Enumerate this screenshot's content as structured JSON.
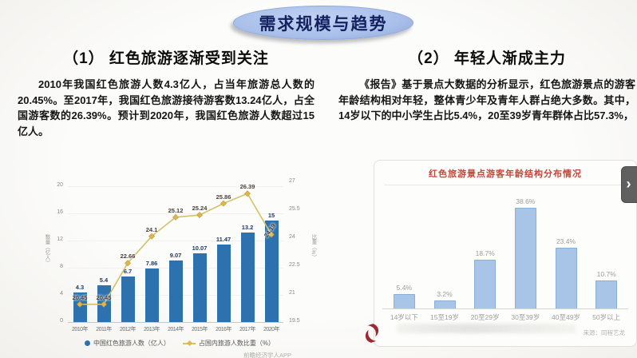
{
  "page_title": "需求规模与趋势",
  "left": {
    "heading": "（1）  红色旅游逐渐受到关注",
    "paragraph": "2010年我国红色旅游人数4.3亿人，占当年旅游总人数的20.45%。至2017年，我国红色旅游接待游客数13.24亿人，占全国游客数的26.39%。预计到2020年，我国红色旅游人数超过15亿人。"
  },
  "right": {
    "heading": "（2）  年轻人渐成主力",
    "paragraph": "《报告》基于景点大数据的分析显示，红色旅游景点的游客年龄结构相对年轻，整体青少年及青年人群占绝大多数。其中，14岁以下的中小学生占比5.4%，20至39岁青年群体占比57.3%，"
  },
  "chart_data": [
    {
      "type": "bar",
      "categories": [
        "2010年",
        "2011年",
        "2012年",
        "2013年",
        "2014年",
        "2015年",
        "2016年",
        "2017年",
        "2020年"
      ],
      "series": [
        {
          "name": "中国红色旅游人数（亿人）",
          "type": "bar",
          "axis": "left",
          "values": [
            4.3,
            5.4,
            6.7,
            7.86,
            9.07,
            10.07,
            11.47,
            13.2,
            15
          ]
        },
        {
          "name": "占国内旅游人数比重（%）",
          "type": "line",
          "axis": "right",
          "values": [
            20.45,
            20.45,
            22.66,
            24.1,
            25.12,
            25.24,
            25.86,
            26.39,
            24.19
          ]
        }
      ],
      "title": "",
      "ylabel_left": "数量（亿人）",
      "ylabel_right": "比重（%）",
      "y_left": {
        "min": 0,
        "max": 20,
        "ticks": [
          0,
          4,
          8,
          12,
          16,
          20
        ]
      },
      "y_right": {
        "min": 19.5,
        "max": 27,
        "ticks": [
          19.5,
          21,
          22.5,
          24,
          25.5,
          27
        ]
      },
      "grid": "off",
      "legend_position": "bottom",
      "caption": "前瞻经济学人APP"
    },
    {
      "type": "bar",
      "title": "红色旅游景点游客年龄结构分布情况",
      "categories": [
        "14岁以下",
        "15至19岁",
        "20至29岁",
        "30至39岁",
        "40至49岁",
        "50岁以上"
      ],
      "values": [
        5.4,
        3.2,
        18.7,
        38.6,
        23.4,
        10.7
      ],
      "unit": "%",
      "ylim": [
        0,
        40
      ],
      "grid": "off",
      "legend_position": "none",
      "source": "来源：同程艺龙"
    }
  ],
  "next_button": {
    "label": "›"
  },
  "colors": {
    "pill_bg": "#a9c0ea",
    "pill_text": "#13215e",
    "bar_primary": "#2d72ae",
    "bar_label": "#1f3864",
    "line": "#d2c266",
    "marker": "#e3b64b",
    "line_label": "#4a4038",
    "bar_secondary": "#a8c5e8",
    "bar_secondary_border": "#8bb0d8",
    "chart2_title": "#c2473b",
    "logo_red": "#9c2a33",
    "muted": "#9c9c98"
  }
}
